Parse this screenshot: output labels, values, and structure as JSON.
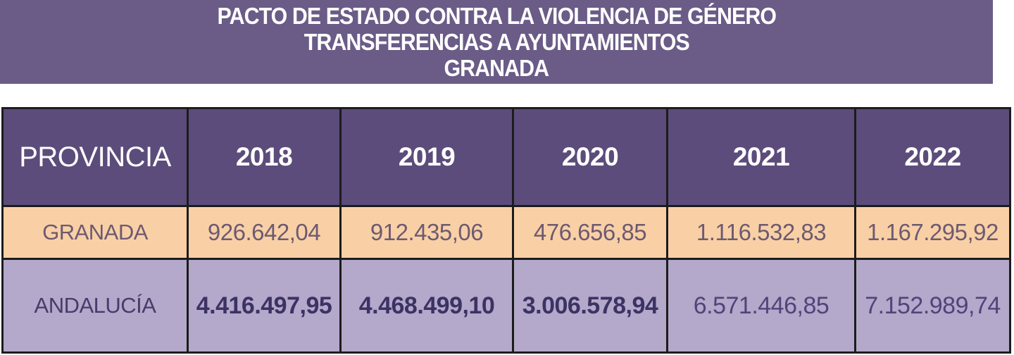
{
  "banner": {
    "lines": [
      "PACTO DE ESTADO CONTRA LA VIOLENCIA DE GÉNERO",
      "TRANSFERENCIAS A AYUNTAMIENTOS",
      "GRANADA"
    ],
    "bg_color": "#6a5b87",
    "text_color": "#ffffff"
  },
  "table": {
    "header": {
      "province_label": "PROVINCIA",
      "years": [
        "2018",
        "2019",
        "2020",
        "2021",
        "2022"
      ],
      "bg_color": "#5c4c7b"
    },
    "rows": [
      {
        "label": "GRANADA",
        "values": [
          "926.642,04",
          "912.435,06",
          "476.656,85",
          "1.116.532,83",
          "1.167.295,92"
        ],
        "bg_color": "#f9d0a5"
      },
      {
        "label": "ANDALUCÍA",
        "values": [
          "4.416.497,95",
          "4.468.499,10",
          "3.006.578,94",
          "6.571.446,85",
          "7.152.989,74"
        ],
        "bg_color": "#b4a8cb"
      }
    ],
    "border_color": "#1c1c1c"
  },
  "chart_data": {
    "type": "table",
    "title": "PACTO DE ESTADO CONTRA LA VIOLENCIA DE GÉNERO",
    "subtitle": "TRANSFERENCIAS A AYUNTAMIENTOS",
    "region": "GRANADA",
    "columns": [
      "PROVINCIA",
      "2018",
      "2019",
      "2020",
      "2021",
      "2022"
    ],
    "rows": [
      {
        "provincia": "GRANADA",
        "values": [
          926642.04,
          912435.06,
          476656.85,
          1116532.83,
          1167295.92
        ]
      },
      {
        "provincia": "ANDALUCÍA",
        "values": [
          4416497.95,
          4468499.1,
          3006578.94,
          6571446.85,
          7152989.74
        ]
      }
    ],
    "value_format": "es-ES decimal (thousands '.' / decimals ',')",
    "layout": "title banner on purple, header row dark purple, GRANADA row peach, ANDALUCÍA row light purple"
  }
}
